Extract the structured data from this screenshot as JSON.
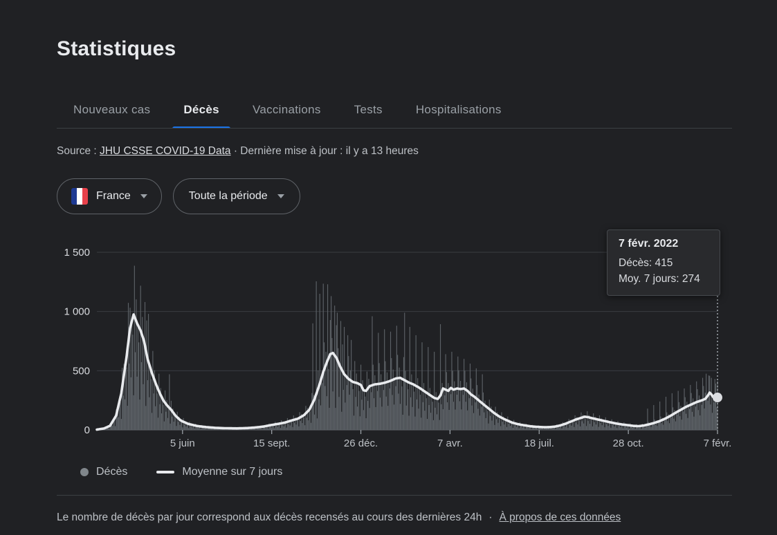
{
  "page": {
    "title": "Statistiques",
    "background": "#202124"
  },
  "tabs": [
    {
      "label": "Nouveaux cas",
      "active": false
    },
    {
      "label": "Décès",
      "active": true
    },
    {
      "label": "Vaccinations",
      "active": false
    },
    {
      "label": "Tests",
      "active": false
    },
    {
      "label": "Hospitalisations",
      "active": false
    }
  ],
  "source_bar": {
    "prefix": "Source : ",
    "link": "JHU CSSE COVID-19 Data",
    "suffix": " · Dernière mise à jour : il y a 13 heures"
  },
  "filters": {
    "country": {
      "label": "France",
      "flag_icon": "france-flag",
      "flag_colors": [
        "#1e3a93",
        "#ffffff",
        "#e8414b"
      ]
    },
    "period": {
      "label": "Toute la période"
    }
  },
  "tooltip": {
    "date": "7 févr. 2022",
    "deaths_row": "Décès: 415",
    "avg_row": "Moy. 7 jours: 274"
  },
  "legend": {
    "deaths_label": "Décès",
    "avg_label": "Moyenne sur 7 jours"
  },
  "footer": {
    "text": "Le nombre de décès par jour correspond aux décès recensés au cours des dernières 24h",
    "separator": "·",
    "link": "À propos de ces données"
  },
  "chart_data": {
    "type": "bar",
    "x_unit": "day_index_from_2020-02-28",
    "x_end_day": 710,
    "ylim": [
      0,
      1500
    ],
    "grid": true,
    "legend_position": "bottom",
    "yticks": [
      {
        "v": 0,
        "label": "0"
      },
      {
        "v": 500,
        "label": "500"
      },
      {
        "v": 1000,
        "label": "1 000"
      },
      {
        "v": 1500,
        "label": "1 500"
      }
    ],
    "xticks": [
      {
        "day": 98,
        "label": "5 juin"
      },
      {
        "day": 200,
        "label": "15 sept."
      },
      {
        "day": 302,
        "label": "26 déc."
      },
      {
        "day": 404,
        "label": "7 avr."
      },
      {
        "day": 506,
        "label": "18 juil."
      },
      {
        "day": 608,
        "label": "28 oct."
      },
      {
        "day": 710,
        "label": "7 févr."
      }
    ],
    "series": [
      {
        "name": "Décès",
        "type": "bar",
        "color": "#5c6166",
        "weekday_pattern": [
          0.3,
          1.45,
          0.7,
          1.2,
          0.5,
          1.0,
          0.85
        ],
        "spikes": [
          [
            55,
            1080
          ],
          [
            59,
            980
          ],
          [
            83,
            470
          ],
          [
            247,
            900
          ],
          [
            251,
            1255
          ],
          [
            255,
            1150
          ],
          [
            259,
            1235
          ],
          [
            264,
            1230
          ],
          [
            268,
            1130
          ],
          [
            272,
            1050
          ],
          [
            275,
            990
          ],
          [
            279,
            920
          ],
          [
            283,
            870
          ],
          [
            287,
            800
          ],
          [
            291,
            760
          ],
          [
            315,
            960
          ],
          [
            322,
            820
          ],
          [
            329,
            850
          ],
          [
            336,
            830
          ],
          [
            343,
            880
          ],
          [
            352,
            990
          ],
          [
            358,
            870
          ],
          [
            365,
            800
          ],
          [
            372,
            740
          ],
          [
            379,
            700
          ],
          [
            386,
            660
          ],
          [
            393,
            893
          ],
          [
            399,
            640
          ],
          [
            406,
            660
          ],
          [
            413,
            620
          ],
          [
            420,
            600
          ],
          [
            427,
            560
          ],
          [
            434,
            520
          ],
          [
            441,
            470
          ],
          [
            630,
            180
          ],
          [
            637,
            210
          ],
          [
            644,
            240
          ],
          [
            651,
            280
          ],
          [
            658,
            310
          ],
          [
            665,
            330
          ],
          [
            672,
            350
          ],
          [
            679,
            380
          ],
          [
            686,
            410
          ],
          [
            693,
            440
          ],
          [
            697,
            475
          ],
          [
            700,
            460
          ],
          [
            703,
            440
          ],
          [
            707,
            430
          ],
          [
            710,
            415
          ]
        ]
      },
      {
        "name": "Moyenne sur 7 jours",
        "type": "line",
        "color": "#e8eaed",
        "points": [
          [
            0,
            3
          ],
          [
            8,
            12
          ],
          [
            15,
            35
          ],
          [
            22,
            120
          ],
          [
            28,
            310
          ],
          [
            34,
            620
          ],
          [
            38,
            860
          ],
          [
            42,
            975
          ],
          [
            46,
            900
          ],
          [
            50,
            840
          ],
          [
            54,
            750
          ],
          [
            58,
            600
          ],
          [
            63,
            480
          ],
          [
            68,
            380
          ],
          [
            72,
            310
          ],
          [
            76,
            250
          ],
          [
            80,
            210
          ],
          [
            85,
            170
          ],
          [
            90,
            120
          ],
          [
            95,
            85
          ],
          [
            98,
            72
          ],
          [
            105,
            50
          ],
          [
            115,
            33
          ],
          [
            125,
            24
          ],
          [
            135,
            18
          ],
          [
            145,
            15
          ],
          [
            160,
            13
          ],
          [
            172,
            16
          ],
          [
            180,
            20
          ],
          [
            190,
            28
          ],
          [
            200,
            42
          ],
          [
            208,
            52
          ],
          [
            215,
            62
          ],
          [
            222,
            78
          ],
          [
            230,
            95
          ],
          [
            237,
            125
          ],
          [
            243,
            170
          ],
          [
            249,
            260
          ],
          [
            255,
            390
          ],
          [
            259,
            490
          ],
          [
            263,
            570
          ],
          [
            267,
            640
          ],
          [
            270,
            650
          ],
          [
            274,
            610
          ],
          [
            278,
            540
          ],
          [
            283,
            470
          ],
          [
            288,
            430
          ],
          [
            293,
            405
          ],
          [
            298,
            395
          ],
          [
            302,
            380
          ],
          [
            305,
            335
          ],
          [
            308,
            330
          ],
          [
            312,
            370
          ],
          [
            318,
            385
          ],
          [
            324,
            390
          ],
          [
            330,
            400
          ],
          [
            336,
            415
          ],
          [
            342,
            435
          ],
          [
            347,
            440
          ],
          [
            352,
            420
          ],
          [
            357,
            400
          ],
          [
            362,
            385
          ],
          [
            368,
            360
          ],
          [
            374,
            330
          ],
          [
            380,
            300
          ],
          [
            386,
            270
          ],
          [
            390,
            262
          ],
          [
            393,
            290
          ],
          [
            396,
            350
          ],
          [
            399,
            340
          ],
          [
            402,
            330
          ],
          [
            405,
            355
          ],
          [
            408,
            340
          ],
          [
            412,
            350
          ],
          [
            416,
            345
          ],
          [
            420,
            350
          ],
          [
            424,
            330
          ],
          [
            428,
            300
          ],
          [
            432,
            280
          ],
          [
            436,
            255
          ],
          [
            440,
            230
          ],
          [
            445,
            200
          ],
          [
            450,
            170
          ],
          [
            455,
            140
          ],
          [
            460,
            115
          ],
          [
            465,
            95
          ],
          [
            470,
            78
          ],
          [
            475,
            62
          ],
          [
            480,
            52
          ],
          [
            485,
            44
          ],
          [
            490,
            38
          ],
          [
            495,
            32
          ],
          [
            500,
            28
          ],
          [
            506,
            25
          ],
          [
            512,
            23
          ],
          [
            518,
            24
          ],
          [
            524,
            28
          ],
          [
            530,
            38
          ],
          [
            536,
            52
          ],
          [
            542,
            70
          ],
          [
            548,
            88
          ],
          [
            554,
            102
          ],
          [
            558,
            112
          ],
          [
            562,
            108
          ],
          [
            566,
            100
          ],
          [
            572,
            90
          ],
          [
            578,
            80
          ],
          [
            584,
            70
          ],
          [
            590,
            60
          ],
          [
            596,
            52
          ],
          [
            602,
            45
          ],
          [
            608,
            40
          ],
          [
            614,
            34
          ],
          [
            620,
            32
          ],
          [
            626,
            38
          ],
          [
            632,
            48
          ],
          [
            638,
            60
          ],
          [
            644,
            75
          ],
          [
            650,
            95
          ],
          [
            656,
            118
          ],
          [
            662,
            145
          ],
          [
            668,
            170
          ],
          [
            674,
            195
          ],
          [
            680,
            215
          ],
          [
            686,
            235
          ],
          [
            692,
            250
          ],
          [
            696,
            262
          ],
          [
            699,
            290
          ],
          [
            701,
            315
          ],
          [
            703,
            300
          ],
          [
            705,
            278
          ],
          [
            707,
            268
          ],
          [
            709,
            272
          ],
          [
            710,
            274
          ]
        ]
      }
    ],
    "highlight": {
      "day": 710,
      "date": "7 févr. 2022",
      "deaths": 415,
      "avg7": 274
    },
    "colors": {
      "grid": "#3a3d41",
      "axis": "#5f6368",
      "tick": "#9aa0a6",
      "ytick_text": "#dadce0",
      "xtick_text": "#bdc1c6",
      "dotted_line": "#9aa0a6",
      "marker": "#dadce0"
    }
  }
}
